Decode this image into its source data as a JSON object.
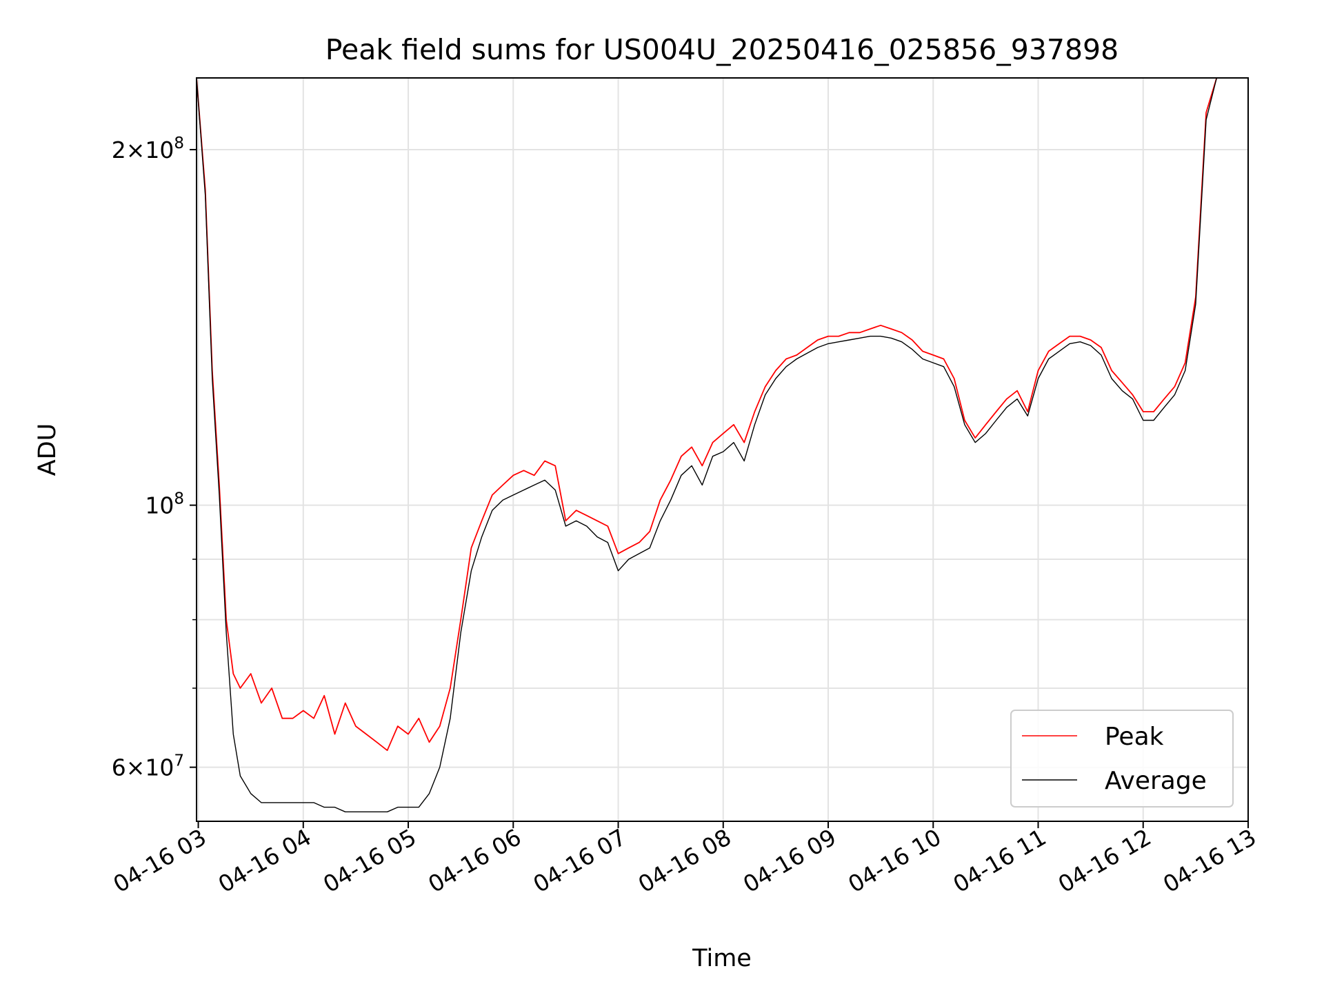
{
  "chart_data": {
    "type": "line",
    "title": "Peak field sums for US004U_20250416_025856_937898",
    "xlabel": "Time",
    "ylabel": "ADU",
    "y_scale": "log",
    "ylim": [
      54000000,
      230000000
    ],
    "xlim": [
      "2025-04-16T02:59",
      "2025-04-16T13:00"
    ],
    "x_tick_labels": [
      "04-16 03",
      "04-16 04",
      "04-16 05",
      "04-16 06",
      "04-16 07",
      "04-16 08",
      "04-16 09",
      "04-16 10",
      "04-16 11",
      "04-16 12",
      "04-16 13"
    ],
    "x_ticks": [
      "2025-04-16T03:00",
      "2025-04-16T04:00",
      "2025-04-16T05:00",
      "2025-04-16T06:00",
      "2025-04-16T07:00",
      "2025-04-16T08:00",
      "2025-04-16T09:00",
      "2025-04-16T10:00",
      "2025-04-16T11:00",
      "2025-04-16T12:00",
      "2025-04-16T13:00"
    ],
    "y_major_ticks": [
      {
        "value": 60000000,
        "mantissa": "6",
        "exp": "7"
      },
      {
        "value": 100000000,
        "mantissa": "",
        "exp": "8"
      },
      {
        "value": 200000000,
        "mantissa": "2",
        "exp": "8"
      }
    ],
    "y_times_sign": "×",
    "y_base": "10",
    "y_minor_ticks": [
      70000000,
      80000000,
      90000000
    ],
    "grid": true,
    "legend": "lower-right",
    "series": [
      {
        "name": "Peak",
        "color": "#ff0000",
        "x": [
          "02:59",
          "03:04",
          "03:08",
          "03:12",
          "03:16",
          "03:20",
          "03:24",
          "03:30",
          "03:36",
          "03:42",
          "03:48",
          "03:54",
          "04:00",
          "04:06",
          "04:12",
          "04:18",
          "04:24",
          "04:30",
          "04:36",
          "04:42",
          "04:48",
          "04:54",
          "05:00",
          "05:06",
          "05:12",
          "05:18",
          "05:24",
          "05:30",
          "05:36",
          "05:42",
          "05:48",
          "05:54",
          "06:00",
          "06:06",
          "06:12",
          "06:18",
          "06:24",
          "06:30",
          "06:36",
          "06:42",
          "06:48",
          "06:54",
          "07:00",
          "07:06",
          "07:12",
          "07:18",
          "07:24",
          "07:30",
          "07:36",
          "07:42",
          "07:48",
          "07:54",
          "08:00",
          "08:06",
          "08:12",
          "08:18",
          "08:24",
          "08:30",
          "08:36",
          "08:42",
          "08:48",
          "08:54",
          "09:00",
          "09:06",
          "09:12",
          "09:18",
          "09:24",
          "09:30",
          "09:36",
          "09:42",
          "09:48",
          "09:54",
          "10:00",
          "10:06",
          "10:12",
          "10:18",
          "10:24",
          "10:30",
          "10:36",
          "10:42",
          "10:48",
          "10:54",
          "11:00",
          "11:06",
          "11:12",
          "11:18",
          "11:24",
          "11:30",
          "11:36",
          "11:42",
          "11:48",
          "11:54",
          "12:00",
          "12:06",
          "12:12",
          "12:18",
          "12:24",
          "12:30",
          "12:36",
          "12:42",
          "12:48",
          "12:54",
          "13:00"
        ],
        "values": [
          230000000,
          185000000,
          130000000,
          104000000,
          80000000,
          72000000,
          70000000,
          72000000,
          68000000,
          70000000,
          66000000,
          66000000,
          67000000,
          66000000,
          69000000,
          64000000,
          68000000,
          65000000,
          64000000,
          63000000,
          62000000,
          65000000,
          64000000,
          66000000,
          63000000,
          65000000,
          70000000,
          80000000,
          92000000,
          97000000,
          102000000,
          104000000,
          106000000,
          107000000,
          106000000,
          109000000,
          108000000,
          97000000,
          99000000,
          98000000,
          97000000,
          96000000,
          91000000,
          92000000,
          93000000,
          95000000,
          101000000,
          105000000,
          110000000,
          112000000,
          108000000,
          113000000,
          115000000,
          117000000,
          113000000,
          120000000,
          126000000,
          130000000,
          133000000,
          134000000,
          136000000,
          138000000,
          139000000,
          139000000,
          140000000,
          140000000,
          141000000,
          142000000,
          141000000,
          140000000,
          138000000,
          135000000,
          134000000,
          133000000,
          128000000,
          118000000,
          114000000,
          117000000,
          120000000,
          123000000,
          125000000,
          120000000,
          130000000,
          135000000,
          137000000,
          139000000,
          139000000,
          138000000,
          136000000,
          130000000,
          127000000,
          124000000,
          120000000,
          120000000,
          123000000,
          126000000,
          132000000,
          150000000,
          215000000,
          230000000,
          230000000,
          230000000,
          230000000
        ]
      },
      {
        "name": "Average",
        "color": "#000000",
        "x": [
          "02:59",
          "03:04",
          "03:08",
          "03:12",
          "03:16",
          "03:20",
          "03:24",
          "03:30",
          "03:36",
          "03:42",
          "03:48",
          "03:54",
          "04:00",
          "04:06",
          "04:12",
          "04:18",
          "04:24",
          "04:30",
          "04:36",
          "04:42",
          "04:48",
          "04:54",
          "05:00",
          "05:06",
          "05:12",
          "05:18",
          "05:24",
          "05:30",
          "05:36",
          "05:42",
          "05:48",
          "05:54",
          "06:00",
          "06:06",
          "06:12",
          "06:18",
          "06:24",
          "06:30",
          "06:36",
          "06:42",
          "06:48",
          "06:54",
          "07:00",
          "07:06",
          "07:12",
          "07:18",
          "07:24",
          "07:30",
          "07:36",
          "07:42",
          "07:48",
          "07:54",
          "08:00",
          "08:06",
          "08:12",
          "08:18",
          "08:24",
          "08:30",
          "08:36",
          "08:42",
          "08:48",
          "08:54",
          "09:00",
          "09:06",
          "09:12",
          "09:18",
          "09:24",
          "09:30",
          "09:36",
          "09:42",
          "09:48",
          "09:54",
          "10:00",
          "10:06",
          "10:12",
          "10:18",
          "10:24",
          "10:30",
          "10:36",
          "10:42",
          "10:48",
          "10:54",
          "11:00",
          "11:06",
          "11:12",
          "11:18",
          "11:24",
          "11:30",
          "11:36",
          "11:42",
          "11:48",
          "11:54",
          "12:00",
          "12:06",
          "12:12",
          "12:18",
          "12:24",
          "12:30",
          "12:36",
          "12:42",
          "12:48",
          "12:54",
          "13:00"
        ],
        "values": [
          230000000,
          183000000,
          128000000,
          102000000,
          78000000,
          64000000,
          59000000,
          57000000,
          56000000,
          56000000,
          56000000,
          56000000,
          56000000,
          56000000,
          55500000,
          55500000,
          55000000,
          55000000,
          55000000,
          55000000,
          55000000,
          55500000,
          55500000,
          55500000,
          57000000,
          60000000,
          66000000,
          78000000,
          88000000,
          94000000,
          99000000,
          101000000,
          102000000,
          103000000,
          104000000,
          105000000,
          103000000,
          96000000,
          97000000,
          96000000,
          94000000,
          93000000,
          88000000,
          90000000,
          91000000,
          92000000,
          97000000,
          101000000,
          106000000,
          108000000,
          104000000,
          110000000,
          111000000,
          113000000,
          109000000,
          117000000,
          124000000,
          128000000,
          131000000,
          133000000,
          134500000,
          136000000,
          137000000,
          137500000,
          138000000,
          138500000,
          139000000,
          139000000,
          138500000,
          137500000,
          135500000,
          133000000,
          132000000,
          131000000,
          126000000,
          117000000,
          113000000,
          115000000,
          118000000,
          121000000,
          123000000,
          119000000,
          128000000,
          133000000,
          135000000,
          137000000,
          137500000,
          136500000,
          134000000,
          128000000,
          125000000,
          123000000,
          118000000,
          118000000,
          121000000,
          124000000,
          130000000,
          148000000,
          212000000,
          230000000,
          230000000,
          230000000,
          230000000
        ]
      }
    ]
  }
}
